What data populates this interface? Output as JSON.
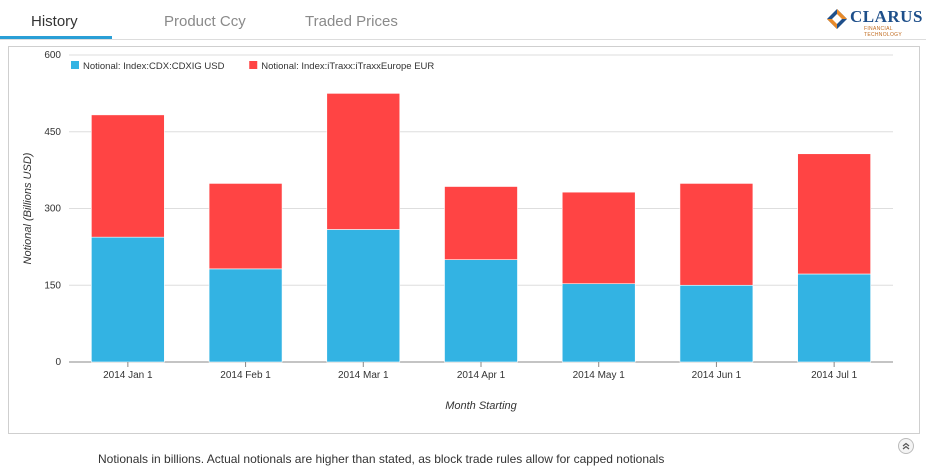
{
  "tabs": [
    {
      "label": "History",
      "active": true
    },
    {
      "label": "Product Ccy",
      "active": false
    },
    {
      "label": "Traded Prices",
      "active": false
    }
  ],
  "brand": {
    "name": "CLARUS",
    "tagline": "FINANCIAL TECHNOLOGY"
  },
  "footer": {
    "note": "Notionals in billions. Actual notionals are higher than stated, as block trade rules allow for capped notionals"
  },
  "chart_data": {
    "type": "bar",
    "stacked": true,
    "title": "",
    "xlabel": "Month Starting",
    "ylabel": "Notional (Billions USD)",
    "ylim": [
      0,
      600
    ],
    "yticks": [
      0,
      150,
      300,
      450,
      600
    ],
    "grid": true,
    "legend_position": "top-left",
    "categories": [
      "2014 Jan 1",
      "2014 Feb 1",
      "2014 Mar 1",
      "2014 Apr 1",
      "2014 May 1",
      "2014 Jun 1",
      "2014 Jul 1"
    ],
    "series": [
      {
        "name": "Notional: Index:CDX:CDXIG USD",
        "color": "#33b3e3",
        "values": [
          244,
          182,
          259,
          200,
          153,
          150,
          172
        ]
      },
      {
        "name": "Notional: Index:iTraxx:iTraxxEurope EUR",
        "color": "#ff4444",
        "values": [
          239,
          167,
          266,
          143,
          179,
          199,
          235
        ]
      }
    ]
  }
}
